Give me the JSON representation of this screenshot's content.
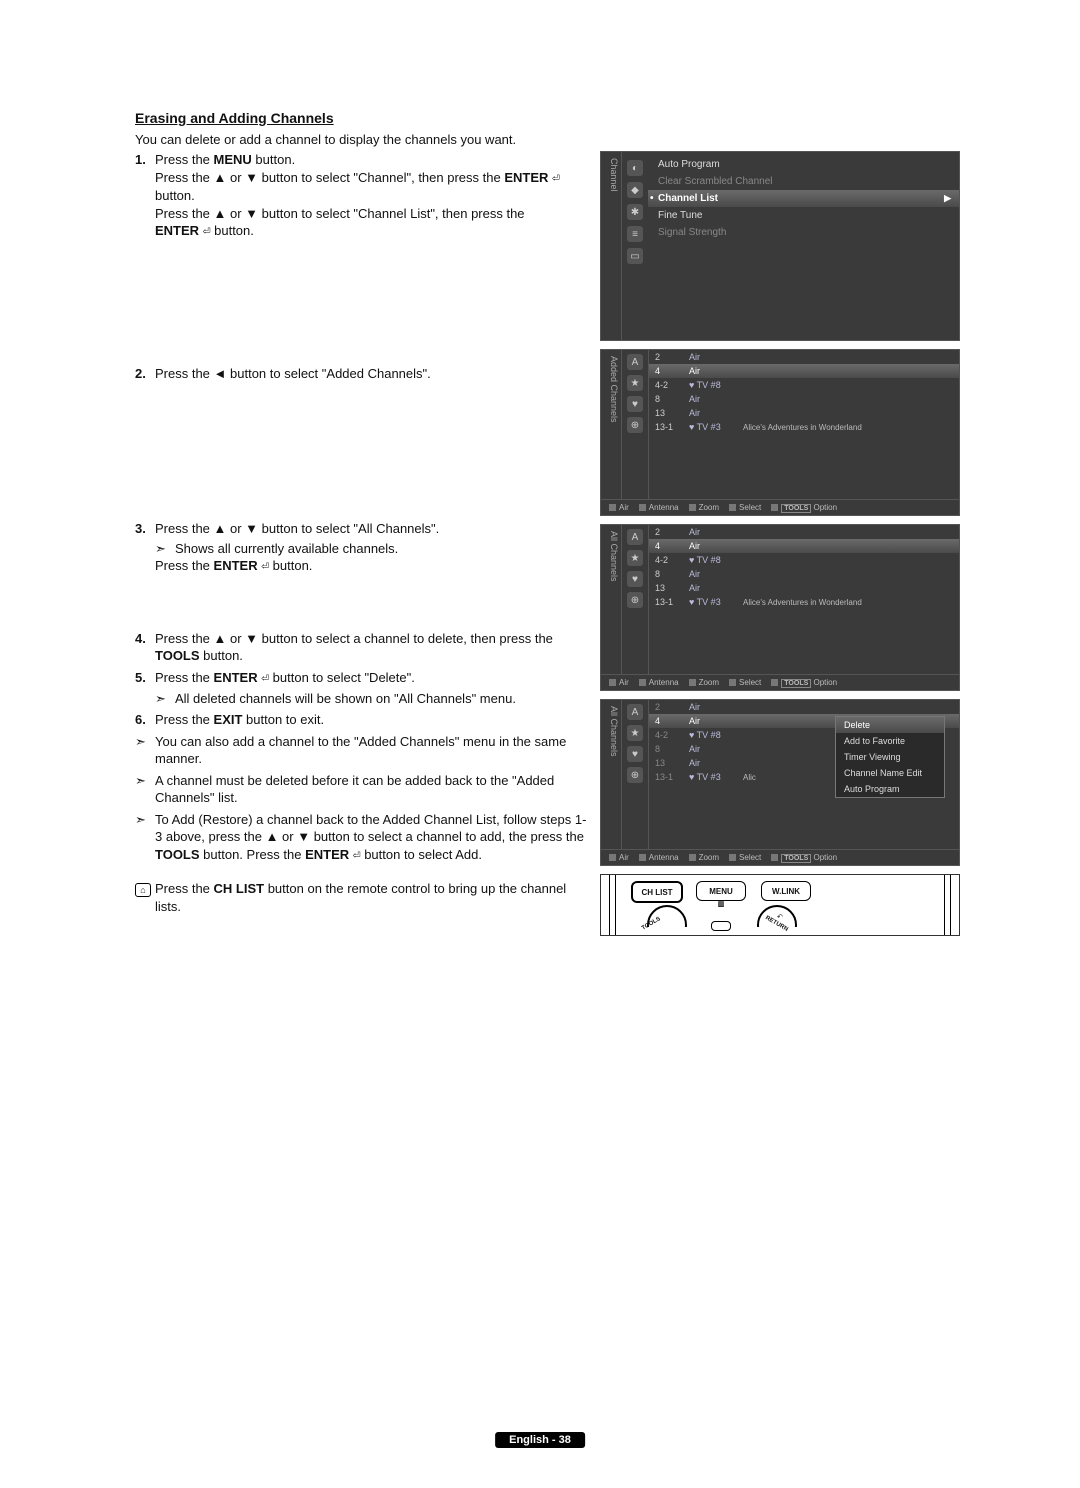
{
  "heading": "Erasing and Adding Channels",
  "intro": "You can delete or add a channel to display the channels you want.",
  "enter_icon": "⏎",
  "steps": {
    "s1": {
      "n": "1.",
      "l1a": "Press the ",
      "menu": "MENU",
      "l1b": " button.",
      "l2a": "Press the ▲ or ▼ button to select \"Channel\", then press the ",
      "enter": "ENTER",
      "l2b": "button.",
      "l3a": "Press the ▲ or ▼ button to select \"Channel List\", then press the",
      "l4a": "ENTER",
      "l4b": " button."
    },
    "s2": {
      "n": "2.",
      "t": "Press the ◄ button to select \"Added Channels\"."
    },
    "s3": {
      "n": "3.",
      "l1": "Press the ▲ or ▼ button to select \"All Channels\".",
      "sub": "Shows all currently available channels.",
      "l2a": "Press the ",
      "enter": "ENTER",
      "l2b": " button."
    },
    "s4": {
      "n": "4.",
      "l1": "Press the ▲ or ▼ button to select a channel to delete, then press the ",
      "tools": "TOOLS",
      "l1b": " button."
    },
    "s5": {
      "n": "5.",
      "l1a": "Press the ",
      "enter": "ENTER",
      "l1b": " button to select \"Delete\".",
      "sub": "All deleted channels will be shown on \"All Channels\" menu."
    },
    "s6": {
      "n": "6.",
      "l1a": "Press the ",
      "exit": "EXIT",
      "l1b": " button to exit."
    },
    "n1": "You can also add a channel to the \"Added Channels\" menu in the same manner.",
    "n2": "A channel must be deleted before it can be added back to the \"Added Channels\" list.",
    "n3a": "To Add (Restore) a channel back to the Added Channel List, follow steps 1-3 above, press the ▲ or ▼ button to select a channel to add, the press the ",
    "n3_tools": "TOOLS",
    "n3b": " button. Press the ",
    "n3_enter": "ENTER",
    "n3c": " button to select Add.",
    "r1a": "Press the ",
    "r1_chlist": "CH LIST",
    "r1b": " button on the remote control to bring up the channel lists."
  },
  "fig_menu": {
    "side": "Channel",
    "r1": "Auto Program",
    "r2": "Clear Scrambled Channel",
    "r3": "Channel List",
    "r4": "Fine Tune",
    "r5": "Signal Strength"
  },
  "fig2": {
    "side": "Added Channels",
    "rows": [
      {
        "n": "2",
        "l": "Air",
        "d": ""
      },
      {
        "n": "4",
        "l": "Air",
        "d": "",
        "sel": true
      },
      {
        "n": "4-2",
        "l": "♥ TV #8",
        "d": ""
      },
      {
        "n": "8",
        "l": "Air",
        "d": ""
      },
      {
        "n": "13",
        "l": "Air",
        "d": ""
      },
      {
        "n": "13-1",
        "l": "♥ TV #3",
        "d": "Alice's Adventures in Wonderland"
      }
    ]
  },
  "fig3": {
    "side": "All Channels",
    "rows": [
      {
        "n": "2",
        "l": "Air",
        "d": ""
      },
      {
        "n": "4",
        "l": "Air",
        "d": "",
        "sel": true
      },
      {
        "n": "4-2",
        "l": "♥ TV #8",
        "d": ""
      },
      {
        "n": "8",
        "l": "Air",
        "d": ""
      },
      {
        "n": "13",
        "l": "Air",
        "d": ""
      },
      {
        "n": "13-1",
        "l": "♥ TV #3",
        "d": "Alice's Adventures in Wonderland"
      }
    ]
  },
  "fig4": {
    "side": "All Channels",
    "rows": [
      {
        "n": "2",
        "l": "Air",
        "d": "",
        "dim": true
      },
      {
        "n": "4",
        "l": "Air",
        "d": "",
        "sel": true
      },
      {
        "n": "4-2",
        "l": "♥ TV #8",
        "d": "",
        "dim": true
      },
      {
        "n": "8",
        "l": "Air",
        "d": "",
        "dim": true
      },
      {
        "n": "13",
        "l": "Air",
        "d": "",
        "dim": true
      },
      {
        "n": "13-1",
        "l": "♥ TV #3",
        "d": "Alic",
        "dim": true
      }
    ],
    "popup": [
      "Delete",
      "Add to Favorite",
      "Timer Viewing",
      "Channel Name Edit",
      "Auto Program"
    ]
  },
  "footer_items": [
    "Air",
    "Antenna",
    "Zoom",
    "Select",
    "Option"
  ],
  "footer_tools": "TOOLS",
  "remote": {
    "b1": "CH LIST",
    "b2": "MENU",
    "b3": "W.LINK",
    "tools": "TOOLS",
    "return": "RETURN"
  },
  "page_footer": "English - 38"
}
